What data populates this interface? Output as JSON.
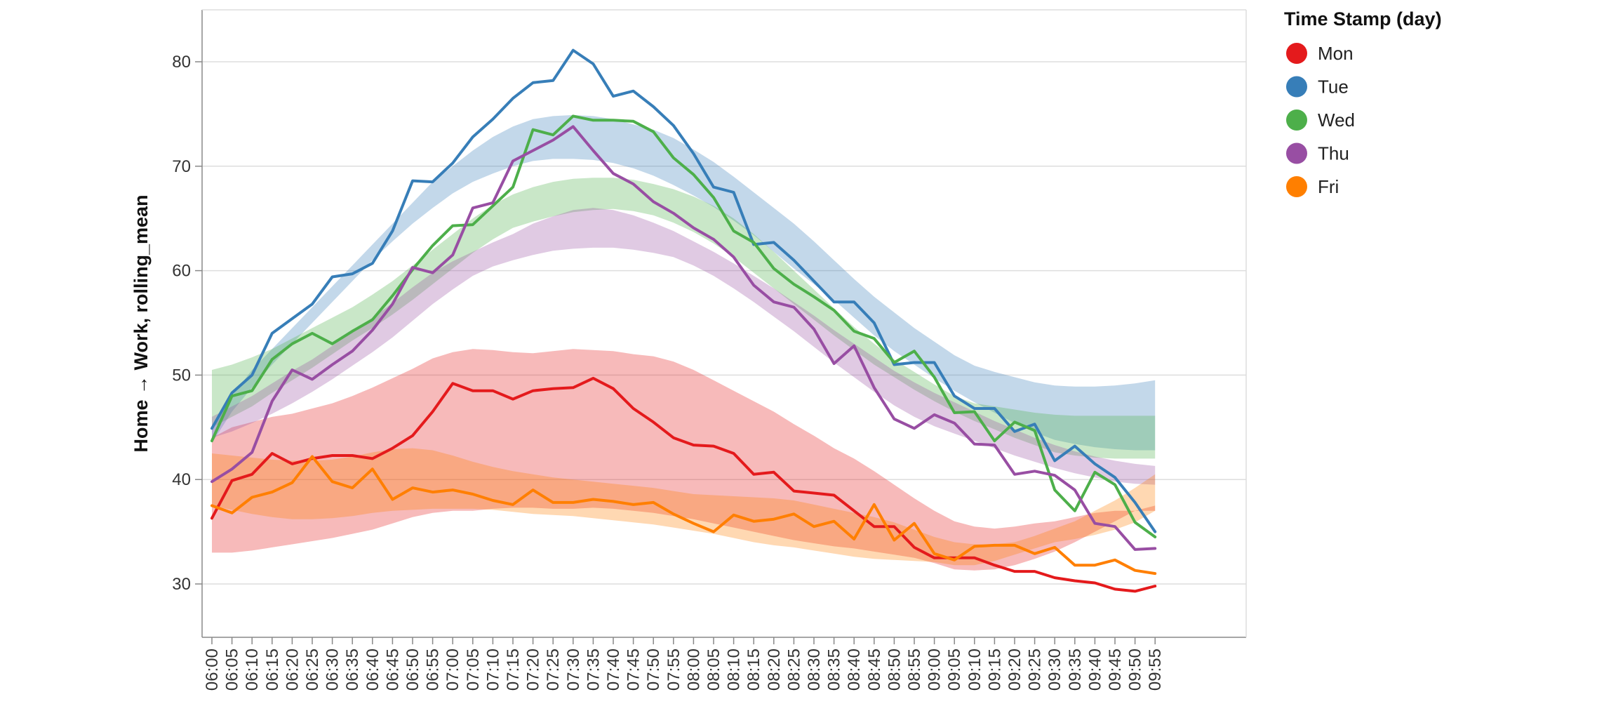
{
  "chart_data": {
    "type": "line",
    "xlabel": "",
    "ylabel": "Home → Work, rolling_mean",
    "ylim": [
      25,
      85
    ],
    "yticks": [
      30,
      40,
      50,
      60,
      70,
      80
    ],
    "grid": true,
    "bands": true,
    "legend_title": "Time Stamp (day)",
    "legend_position": "right",
    "x": [
      "06:00",
      "06:05",
      "06:10",
      "06:15",
      "06:20",
      "06:25",
      "06:30",
      "06:35",
      "06:40",
      "06:45",
      "06:50",
      "06:55",
      "07:00",
      "07:05",
      "07:10",
      "07:15",
      "07:20",
      "07:25",
      "07:30",
      "07:35",
      "07:40",
      "07:45",
      "07:50",
      "07:55",
      "08:00",
      "08:05",
      "08:10",
      "08:15",
      "08:20",
      "08:25",
      "08:30",
      "08:35",
      "08:40",
      "08:45",
      "08:50",
      "08:55",
      "09:00",
      "09:05",
      "09:10",
      "09:15",
      "09:20",
      "09:25",
      "09:30",
      "09:35",
      "09:40",
      "09:45",
      "09:50",
      "09:55"
    ],
    "series": [
      {
        "name": "Mon",
        "color": "#e41a1c",
        "values": [
          36.3,
          39.9,
          40.5,
          42.5,
          41.5,
          42.0,
          42.3,
          42.3,
          42.0,
          43.0,
          44.2,
          46.5,
          49.2,
          48.5,
          48.5,
          47.7,
          48.5,
          48.7,
          48.8,
          49.7,
          48.7,
          46.8,
          45.5,
          44.0,
          43.3,
          43.2,
          42.5,
          40.5,
          40.7,
          38.9,
          38.7,
          38.5,
          37.0,
          35.5,
          35.5,
          33.5,
          32.5,
          32.5,
          32.5,
          31.8,
          31.2,
          31.2,
          30.6,
          30.3,
          30.1,
          29.5,
          29.3,
          29.8
        ],
        "band_upper": [
          44.0,
          45.0,
          45.5,
          46.0,
          46.3,
          46.8,
          47.3,
          48.0,
          48.8,
          49.7,
          50.6,
          51.6,
          52.2,
          52.5,
          52.4,
          52.2,
          52.1,
          52.3,
          52.5,
          52.4,
          52.3,
          52.0,
          51.8,
          51.3,
          50.5,
          49.5,
          48.5,
          47.5,
          46.5,
          45.3,
          44.2,
          43.0,
          42.0,
          40.8,
          39.5,
          38.2,
          37.0,
          36.0,
          35.5,
          35.3,
          35.5,
          35.8,
          36.0,
          36.4,
          36.8,
          37.0,
          37.0,
          37.0
        ],
        "band_lower": [
          33.0,
          33.0,
          33.2,
          33.5,
          33.8,
          34.1,
          34.4,
          34.8,
          35.2,
          35.8,
          36.4,
          36.8,
          37.0,
          37.0,
          37.2,
          37.3,
          37.3,
          37.2,
          37.2,
          37.3,
          37.2,
          37.0,
          36.8,
          36.5,
          36.2,
          35.8,
          35.4,
          35.0,
          34.6,
          34.2,
          33.9,
          33.6,
          33.4,
          33.1,
          32.8,
          32.5,
          32.0,
          31.4,
          31.3,
          31.4,
          31.8,
          32.4,
          33.1,
          34.0,
          35.0,
          36.0,
          37.0,
          37.5
        ]
      },
      {
        "name": "Tue",
        "color": "#377eb8",
        "values": [
          44.9,
          48.3,
          50.0,
          54.0,
          55.4,
          56.8,
          59.4,
          59.7,
          60.7,
          63.8,
          68.6,
          68.5,
          70.3,
          72.8,
          74.5,
          76.5,
          78.0,
          78.2,
          81.1,
          79.8,
          76.7,
          77.2,
          75.7,
          73.9,
          71.2,
          68.0,
          67.5,
          62.5,
          62.7,
          61.0,
          59.0,
          57.0,
          57.0,
          55.0,
          51.0,
          51.2,
          51.2,
          48.0,
          46.8,
          46.8,
          44.6,
          45.3,
          41.8,
          43.2,
          41.5,
          40.2,
          37.8,
          35.0
        ],
        "band_upper": [
          45.0,
          48.0,
          50.5,
          52.5,
          54.5,
          56.5,
          58.5,
          60.5,
          62.5,
          64.5,
          66.5,
          68.5,
          70.0,
          71.5,
          72.8,
          73.8,
          74.5,
          74.8,
          74.9,
          74.8,
          74.5,
          74.0,
          73.5,
          72.7,
          71.6,
          70.4,
          69.0,
          67.5,
          66.0,
          64.5,
          62.8,
          61.0,
          59.2,
          57.5,
          56.0,
          54.5,
          53.2,
          51.9,
          50.9,
          50.3,
          49.8,
          49.3,
          49.0,
          48.9,
          48.9,
          49.0,
          49.2,
          49.5
        ],
        "band_lower": [
          43.5,
          46.5,
          48.8,
          51.0,
          53.0,
          55.0,
          57.0,
          59.0,
          61.0,
          62.8,
          64.5,
          66.0,
          67.4,
          68.5,
          69.3,
          70.0,
          70.5,
          70.7,
          70.7,
          70.6,
          70.3,
          69.8,
          69.1,
          68.2,
          67.2,
          66.1,
          64.8,
          63.4,
          61.8,
          60.2,
          58.7,
          57.2,
          55.5,
          53.8,
          52.3,
          51.0,
          49.7,
          48.5,
          47.4,
          46.4,
          45.4,
          44.5,
          43.8,
          43.4,
          43.1,
          42.9,
          42.8,
          42.8
        ]
      },
      {
        "name": "Wed",
        "color": "#4daf4a",
        "values": [
          43.7,
          48.0,
          48.5,
          51.5,
          53.0,
          54.0,
          53.0,
          54.2,
          55.3,
          57.6,
          60.1,
          62.4,
          64.3,
          64.4,
          66.2,
          68.0,
          73.5,
          73.0,
          74.8,
          74.4,
          74.4,
          74.3,
          73.3,
          70.8,
          69.2,
          67.0,
          63.8,
          62.7,
          60.2,
          58.7,
          57.5,
          56.2,
          54.2,
          53.5,
          51.2,
          52.3,
          49.8,
          46.4,
          46.5,
          43.7,
          45.5,
          44.7,
          39.0,
          37.0,
          40.7,
          39.5,
          35.9,
          34.5
        ],
        "band_upper": [
          50.5,
          51.0,
          51.7,
          52.5,
          53.5,
          54.5,
          55.5,
          56.5,
          57.7,
          59.0,
          60.5,
          62.0,
          63.5,
          65.0,
          66.3,
          67.3,
          68.0,
          68.5,
          68.8,
          68.9,
          68.9,
          68.7,
          68.3,
          67.8,
          67.1,
          66.2,
          65.0,
          63.5,
          61.8,
          60.0,
          58.2,
          56.4,
          54.6,
          53.0,
          51.5,
          50.3,
          49.1,
          48.0,
          47.3,
          47.0,
          46.7,
          46.4,
          46.2,
          46.1,
          46.1,
          46.1,
          46.1,
          46.1
        ],
        "band_lower": [
          45.0,
          46.0,
          47.0,
          48.3,
          49.5,
          50.7,
          52.0,
          53.3,
          54.5,
          55.8,
          57.2,
          58.7,
          60.2,
          61.7,
          63.0,
          64.1,
          64.7,
          65.2,
          65.6,
          65.8,
          65.9,
          65.7,
          65.3,
          64.6,
          63.7,
          62.6,
          61.3,
          59.8,
          58.3,
          56.8,
          55.3,
          53.8,
          52.4,
          51.0,
          49.8,
          48.6,
          47.5,
          46.5,
          45.6,
          44.8,
          44.0,
          43.3,
          42.6,
          42.3,
          42.1,
          42.0,
          42.0,
          42.0
        ]
      },
      {
        "name": "Thu",
        "color": "#984ea3",
        "values": [
          39.8,
          41.0,
          42.6,
          47.5,
          50.5,
          49.6,
          51.0,
          52.3,
          54.3,
          56.8,
          60.3,
          59.8,
          61.5,
          66.0,
          66.5,
          70.5,
          71.5,
          72.5,
          73.8,
          71.5,
          69.3,
          68.3,
          66.6,
          65.5,
          64.1,
          63.0,
          61.3,
          58.6,
          57.0,
          56.5,
          54.4,
          51.1,
          52.8,
          48.8,
          45.8,
          44.9,
          46.2,
          45.4,
          43.4,
          43.3,
          40.5,
          40.8,
          40.4,
          39.0,
          35.8,
          35.5,
          33.3,
          33.4
        ],
        "band_upper": [
          46.0,
          47.0,
          48.0,
          49.2,
          50.4,
          51.5,
          52.8,
          54.2,
          55.5,
          56.9,
          58.4,
          59.8,
          60.9,
          61.8,
          62.7,
          63.5,
          64.5,
          65.2,
          65.8,
          66.0,
          65.8,
          65.3,
          64.6,
          63.8,
          62.8,
          61.8,
          60.7,
          59.5,
          58.3,
          57.0,
          55.7,
          54.3,
          53.0,
          51.7,
          50.4,
          49.3,
          48.3,
          47.4,
          46.5,
          45.6,
          44.8,
          44.0,
          43.3,
          42.7,
          42.2,
          41.8,
          41.5,
          41.3
        ],
        "band_lower": [
          44.0,
          44.6,
          45.4,
          46.3,
          47.3,
          48.4,
          49.6,
          50.9,
          52.2,
          53.6,
          55.2,
          56.8,
          58.2,
          59.5,
          60.4,
          61.0,
          61.5,
          61.9,
          62.1,
          62.2,
          62.2,
          62.0,
          61.7,
          61.3,
          60.5,
          59.5,
          58.3,
          57.0,
          55.6,
          54.2,
          52.7,
          51.2,
          49.8,
          48.4,
          47.1,
          46.0,
          45.1,
          44.4,
          43.7,
          43.0,
          42.3,
          41.7,
          41.1,
          40.6,
          40.2,
          39.8,
          39.6,
          39.5
        ]
      },
      {
        "name": "Fri",
        "color": "#ff7f00",
        "values": [
          37.5,
          36.8,
          38.3,
          38.8,
          39.7,
          42.2,
          39.8,
          39.2,
          41.0,
          38.1,
          39.2,
          38.8,
          39.0,
          38.6,
          38.0,
          37.6,
          39.0,
          37.8,
          37.8,
          38.1,
          37.9,
          37.6,
          37.8,
          36.7,
          35.8,
          35.0,
          36.6,
          36.0,
          36.2,
          36.7,
          35.5,
          36.0,
          34.3,
          37.6,
          34.2,
          35.8,
          32.9,
          32.3,
          33.6,
          33.7,
          33.7,
          32.9,
          33.5,
          31.8,
          31.8,
          32.3,
          31.3,
          31.0
        ],
        "band_upper": [
          42.5,
          42.3,
          42.1,
          41.9,
          41.8,
          41.8,
          41.9,
          42.2,
          42.6,
          42.9,
          43.0,
          42.8,
          42.3,
          41.7,
          41.2,
          40.8,
          40.5,
          40.2,
          40.0,
          39.8,
          39.6,
          39.4,
          39.2,
          38.9,
          38.6,
          38.5,
          38.4,
          38.3,
          38.2,
          38.0,
          37.6,
          37.2,
          36.8,
          36.4,
          35.9,
          35.2,
          34.5,
          34.0,
          33.8,
          33.8,
          34.0,
          34.6,
          35.3,
          36.0,
          37.0,
          38.0,
          39.2,
          40.5
        ],
        "band_lower": [
          37.5,
          37.1,
          36.7,
          36.4,
          36.2,
          36.2,
          36.3,
          36.5,
          36.8,
          37.0,
          37.1,
          37.2,
          37.2,
          37.2,
          37.1,
          36.9,
          36.7,
          36.6,
          36.5,
          36.3,
          36.1,
          35.9,
          35.7,
          35.4,
          35.1,
          34.8,
          34.4,
          34.0,
          33.7,
          33.5,
          33.2,
          32.9,
          32.6,
          32.4,
          32.3,
          32.2,
          32.1,
          31.8,
          31.8,
          32.2,
          32.8,
          33.4,
          34.0,
          34.3,
          34.7,
          35.2,
          35.9,
          37.0
        ]
      }
    ]
  }
}
